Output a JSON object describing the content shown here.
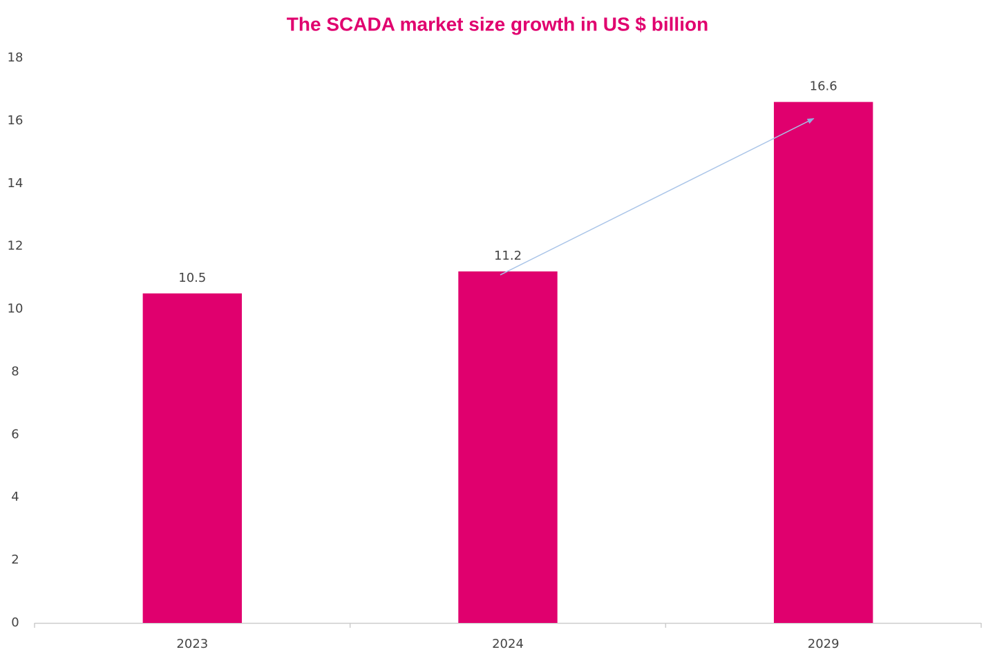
{
  "chart_data": {
    "type": "bar",
    "title": "The SCADA market size growth in US $ billion",
    "categories": [
      "2023",
      "2024",
      "2029"
    ],
    "values": [
      10.5,
      11.2,
      16.6
    ],
    "color": "#e0006e",
    "ylim": [
      0,
      18
    ],
    "yticks": [
      0,
      2,
      4,
      6,
      8,
      10,
      12,
      14,
      16,
      18
    ],
    "grid": false
  }
}
